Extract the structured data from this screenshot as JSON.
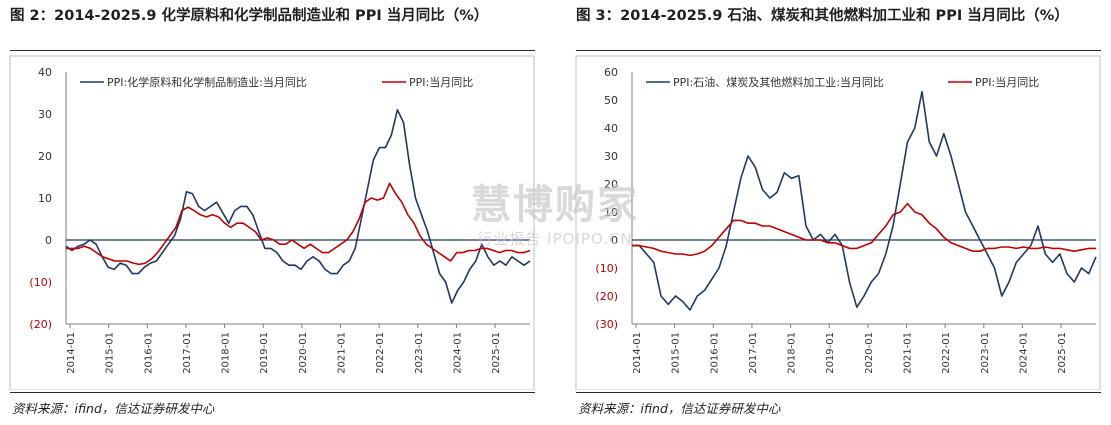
{
  "chart_data": [
    {
      "type": "line",
      "title": "图 2：2014-2025.9 化学原料和化学制品制造业和 PPI 当月同比（%）",
      "source": "资料来源：ifind，信达证券研发中心",
      "ylim": [
        -20,
        40
      ],
      "y_ticks": [
        "40",
        "30",
        "20",
        "10",
        "0",
        "(10)",
        "(20)"
      ],
      "x_ticks": [
        "2014-01",
        "2015-01",
        "2016-01",
        "2017-01",
        "2018-01",
        "2019-01",
        "2020-01",
        "2021-01",
        "2022-01",
        "2023-01",
        "2024-01",
        "2025-01"
      ],
      "legend_position": "top",
      "grid": false,
      "series": [
        {
          "name": "PPI:化学原料和化学制品制造业:当月同比",
          "color": "#1f3864",
          "values": [
            -1.5,
            -2.5,
            -1.5,
            -1,
            0,
            -1,
            -4,
            -6.5,
            -7,
            -5.5,
            -6,
            -8,
            -8,
            -6.5,
            -5.5,
            -5,
            -3,
            -1,
            1,
            5,
            11.5,
            11,
            8,
            7,
            8,
            9,
            6.5,
            4,
            7,
            8,
            8,
            6,
            2,
            -2,
            -2,
            -3,
            -5,
            -6,
            -6,
            -7,
            -5,
            -4,
            -5,
            -7,
            -8,
            -8,
            -6,
            -5,
            -2,
            5,
            12,
            19,
            22,
            22,
            25,
            31,
            28,
            18,
            10,
            6,
            2,
            -3,
            -8,
            -10,
            -15,
            -12,
            -10,
            -7,
            -5,
            -1,
            -4,
            -6,
            -5,
            -6,
            -4,
            -5,
            -6,
            -5
          ]
        },
        {
          "name": "PPI:当月同比",
          "color": "#c00000",
          "values": [
            -2,
            -2,
            -2,
            -1.5,
            -2,
            -3,
            -4,
            -4.5,
            -5,
            -5,
            -5,
            -5.5,
            -5.8,
            -5.5,
            -4.5,
            -3,
            -1,
            1,
            3,
            7,
            7.8,
            7,
            6,
            5.5,
            6,
            5.5,
            4,
            3,
            4,
            4,
            3,
            2,
            0,
            0.5,
            0,
            -1,
            -1,
            0,
            -1,
            -2,
            -1,
            -2,
            -3,
            -3,
            -2,
            -1,
            0,
            2,
            5,
            9,
            10,
            9.5,
            10,
            13.5,
            11,
            9,
            6,
            4,
            1,
            -1,
            -2,
            -3,
            -4,
            -5,
            -3,
            -3,
            -2.5,
            -2.5,
            -2,
            -2,
            -2.5,
            -3,
            -2.5,
            -2.5,
            -3,
            -3,
            -2.5
          ]
        }
      ]
    },
    {
      "type": "line",
      "title": "图 3：2014-2025.9 石油、煤炭和其他燃料加工业和 PPI 当月同比（%）",
      "source": "资料来源：ifind，信达证券研发中心",
      "ylim": [
        -30,
        60
      ],
      "y_ticks": [
        "60",
        "50",
        "40",
        "30",
        "20",
        "10",
        "0",
        "(10)",
        "(20)",
        "(30)"
      ],
      "x_ticks": [
        "2014-01",
        "2015-01",
        "2016-01",
        "2017-01",
        "2018-01",
        "2019-01",
        "2020-01",
        "2021-01",
        "2022-01",
        "2023-01",
        "2024-01",
        "2025-01"
      ],
      "legend_position": "top",
      "grid": false,
      "series": [
        {
          "name": "PPI:石油、煤炭及其他燃料加工业:当月同比",
          "color": "#1f3864",
          "values": [
            -2,
            -2,
            -5,
            -8,
            -20,
            -23,
            -20,
            -22,
            -25,
            -20,
            -18,
            -14,
            -10,
            -2,
            10,
            22,
            30,
            26,
            18,
            15,
            17,
            24,
            22,
            23,
            5,
            0,
            2,
            -1,
            2,
            -2,
            -15,
            -24,
            -20,
            -15,
            -12,
            -5,
            5,
            20,
            35,
            40,
            53,
            35,
            30,
            38,
            30,
            20,
            10,
            5,
            0,
            -5,
            -10,
            -20,
            -15,
            -8,
            -5,
            -2,
            5,
            -5,
            -8,
            -5,
            -12,
            -15,
            -10,
            -12,
            -6
          ]
        },
        {
          "name": "PPI:当月同比",
          "color": "#c00000",
          "values": [
            -2,
            -2,
            -2.5,
            -3,
            -4,
            -4.5,
            -5,
            -5,
            -5.5,
            -5,
            -4,
            -2,
            1,
            4,
            7,
            7,
            6,
            6,
            5,
            5,
            4,
            3,
            2,
            1,
            0,
            0,
            0,
            -1,
            -1,
            -2,
            -3,
            -3,
            -2,
            -1,
            2,
            5,
            9,
            10,
            13,
            10,
            9,
            6,
            4,
            1,
            -1,
            -2,
            -3,
            -4,
            -4,
            -3,
            -3,
            -2.5,
            -2.5,
            -3,
            -2.5,
            -3,
            -3,
            -2.5,
            -3,
            -3,
            -3.5,
            -4,
            -3.5,
            -3,
            -3
          ]
        }
      ]
    }
  ],
  "watermark": {
    "main": "慧博购家",
    "sub": "行业报告 IPOIPO.CN"
  }
}
